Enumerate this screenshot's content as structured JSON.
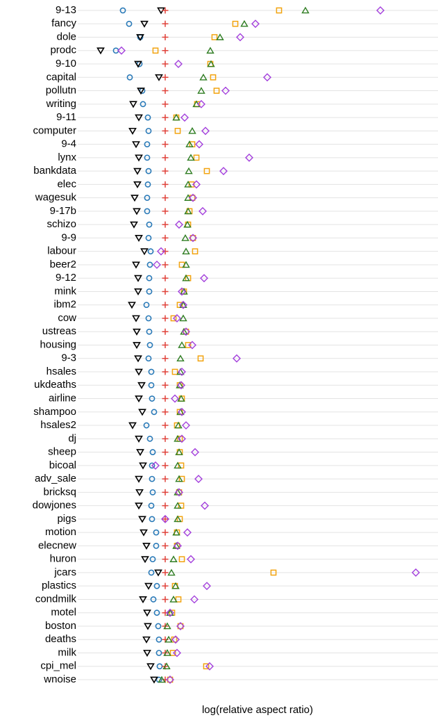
{
  "chart_data": {
    "type": "dotplot",
    "x_label": "log(relative aspect ratio)",
    "xlim": [
      -1.26,
      3.93
    ],
    "grid": true,
    "categories": [
      "9-13",
      "fancy",
      "dole",
      "prodc",
      "9-10",
      "capital",
      "pollutn",
      "writing",
      "9-11",
      "computer",
      "9-4",
      "lynx",
      "bankdata",
      "elec",
      "wagesuk",
      "9-17b",
      "schizo",
      "9-9",
      "labour",
      "beer2",
      "9-12",
      "mink",
      "ibm2",
      "cow",
      "ustreas",
      "housing",
      "9-3",
      "hsales",
      "ukdeaths",
      "airline",
      "shampoo",
      "hsales2",
      "dj",
      "sheep",
      "bicoal",
      "adv_sale",
      "bricksq",
      "dowjones",
      "pigs",
      "motion",
      "elecnew",
      "huron",
      "jcars",
      "plastics",
      "condmilk",
      "motel",
      "boston",
      "deaths",
      "milk",
      "cpi_mel",
      "wnoise"
    ],
    "series": [
      {
        "marker": "circle",
        "color": "#2a7ab8",
        "values": [
          -0.61,
          -0.52,
          -0.36,
          -0.71,
          -0.37,
          -0.51,
          -0.33,
          -0.32,
          -0.25,
          -0.24,
          -0.26,
          -0.26,
          -0.24,
          -0.25,
          -0.26,
          -0.26,
          -0.23,
          -0.24,
          -0.21,
          -0.22,
          -0.23,
          -0.23,
          -0.27,
          -0.24,
          -0.23,
          -0.22,
          -0.24,
          -0.2,
          -0.2,
          -0.19,
          -0.16,
          -0.27,
          -0.22,
          -0.18,
          -0.19,
          -0.19,
          -0.18,
          -0.2,
          -0.19,
          -0.13,
          -0.13,
          -0.18,
          -0.2,
          -0.12,
          -0.17,
          -0.12,
          -0.1,
          -0.09,
          -0.09,
          -0.08,
          -0.09
        ]
      },
      {
        "marker": "triangle-down",
        "color": "#000000",
        "values": [
          -0.06,
          -0.3,
          -0.36,
          -0.93,
          -0.39,
          -0.09,
          -0.35,
          -0.46,
          -0.38,
          -0.47,
          -0.42,
          -0.38,
          -0.4,
          -0.4,
          -0.44,
          -0.41,
          -0.45,
          -0.38,
          -0.3,
          -0.42,
          -0.39,
          -0.39,
          -0.48,
          -0.42,
          -0.41,
          -0.41,
          -0.39,
          -0.38,
          -0.34,
          -0.38,
          -0.33,
          -0.47,
          -0.38,
          -0.36,
          -0.32,
          -0.38,
          -0.37,
          -0.38,
          -0.33,
          -0.31,
          -0.27,
          -0.29,
          -0.1,
          -0.24,
          -0.32,
          -0.26,
          -0.25,
          -0.27,
          -0.26,
          -0.21,
          -0.16
        ]
      },
      {
        "marker": "plus",
        "color": "#e0423a",
        "values": [
          0,
          0,
          0,
          0,
          0,
          0,
          0,
          0,
          0,
          0,
          0,
          0,
          0,
          0,
          0,
          0,
          0,
          0,
          0,
          0,
          0,
          0,
          0,
          0,
          0,
          0,
          0,
          0,
          0,
          0,
          0,
          0,
          0,
          0,
          0,
          0,
          0,
          0,
          0,
          0,
          0,
          0,
          0,
          0,
          0,
          0,
          0,
          0,
          0,
          0,
          0
        ]
      },
      {
        "marker": "square",
        "color": "#f2a30f",
        "values": [
          1.64,
          1.01,
          0.71,
          -0.14,
          0.65,
          0.69,
          0.74,
          0.46,
          0.16,
          0.18,
          0.39,
          0.45,
          0.6,
          0.38,
          0.39,
          0.35,
          0.33,
          0.4,
          0.43,
          0.24,
          0.33,
          0.27,
          0.21,
          0.12,
          0.3,
          0.33,
          0.51,
          0.14,
          0.21,
          0.24,
          0.21,
          0.17,
          0.21,
          0.21,
          0.23,
          0.24,
          0.2,
          0.23,
          0.21,
          0.17,
          0.17,
          0.24,
          1.56,
          0.14,
          0.19,
          0.1,
          0.22,
          0.13,
          0.11,
          0.59,
          0.07
        ]
      },
      {
        "marker": "triangle-up",
        "color": "#2f7d22",
        "values": [
          2.02,
          1.14,
          0.79,
          0.65,
          0.66,
          0.55,
          0.52,
          0.45,
          0.16,
          0.39,
          0.35,
          0.37,
          0.34,
          0.33,
          0.33,
          0.33,
          0.32,
          0.29,
          0.3,
          0.3,
          0.3,
          0.27,
          0.26,
          0.26,
          0.27,
          0.24,
          0.22,
          0.22,
          0.21,
          0.23,
          0.22,
          0.19,
          0.18,
          0.2,
          0.18,
          0.2,
          0.18,
          0.18,
          0.18,
          0.16,
          0.16,
          0.12,
          0.09,
          0.15,
          0.12,
          0.07,
          0.03,
          0.05,
          0.03,
          0.02,
          -0.05
        ]
      },
      {
        "marker": "diamond",
        "color": "#a33fdc",
        "values": [
          3.1,
          1.3,
          1.08,
          -0.63,
          0.19,
          1.47,
          0.87,
          0.52,
          0.28,
          0.58,
          0.49,
          1.21,
          0.84,
          0.45,
          0.4,
          0.54,
          0.2,
          0.4,
          -0.06,
          -0.12,
          0.56,
          0.24,
          0.26,
          0.17,
          0.3,
          0.39,
          1.03,
          0.24,
          0.23,
          0.14,
          0.24,
          0.3,
          0.24,
          0.43,
          -0.14,
          0.48,
          0.2,
          0.57,
          0,
          0.32,
          0.18,
          0.37,
          3.61,
          0.6,
          0.42,
          0.07,
          0.22,
          0.15,
          0.17,
          0.64,
          0.07
        ]
      }
    ]
  }
}
